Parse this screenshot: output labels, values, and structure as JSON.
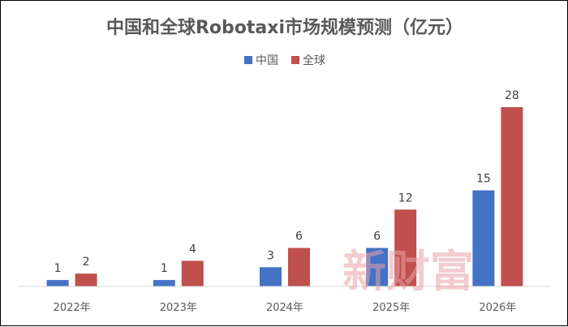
{
  "chart_data": {
    "type": "bar",
    "title": "中国和全球Robotaxi市场规模预测（亿元）",
    "categories": [
      "2022年",
      "2023年",
      "2024年",
      "2025年",
      "2026年"
    ],
    "series": [
      {
        "name": "中国",
        "values": [
          1,
          1,
          3,
          6,
          15
        ],
        "color": "#4472c4"
      },
      {
        "name": "全球",
        "values": [
          2,
          4,
          6,
          12,
          28
        ],
        "color": "#c0504d"
      }
    ],
    "ylim": [
      0,
      30
    ],
    "grid": false,
    "legend": "top-center"
  },
  "watermark": "新财富"
}
